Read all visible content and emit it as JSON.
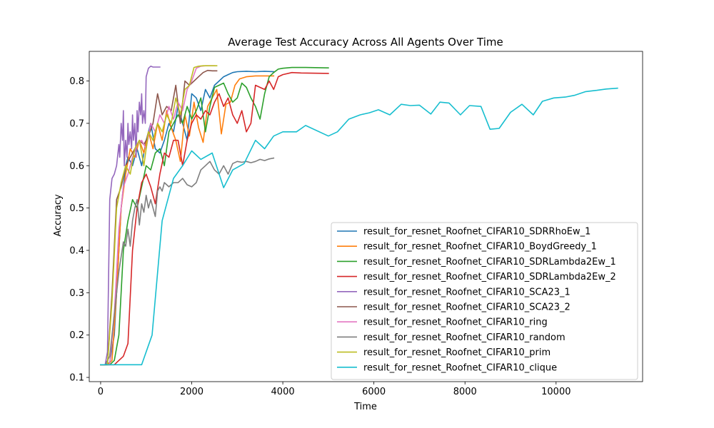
{
  "chart_data": {
    "type": "line",
    "title": "Average Test Accuracy Across All Agents Over Time",
    "xlabel": "Time",
    "ylabel": "Accuracy",
    "xlim": [
      -250,
      11900
    ],
    "ylim": [
      0.09,
      0.87
    ],
    "xticks": [
      0,
      2000,
      4000,
      6000,
      8000,
      10000
    ],
    "yticks": [
      0.1,
      0.2,
      0.3,
      0.4,
      0.5,
      0.6,
      0.7,
      0.8
    ],
    "grid": false,
    "legend_position": "lower-right",
    "series": [
      {
        "name": "result_for_resnet_Roofnet_CIFAR10_SDRRhoEw_1",
        "color": "#1f77b4",
        "x": [
          0,
          100,
          200,
          300,
          400,
          450,
          500,
          550,
          600,
          700,
          800,
          900,
          1000,
          1100,
          1200,
          1300,
          1400,
          1500,
          1600,
          1700,
          1800,
          1900,
          2000,
          2100,
          2200,
          2300,
          2400,
          2500,
          2600,
          2700,
          2800,
          2900,
          3000,
          3200,
          3400,
          3600,
          3800
        ],
        "y": [
          0.13,
          0.13,
          0.135,
          0.2,
          0.4,
          0.5,
          0.55,
          0.6,
          0.62,
          0.6,
          0.64,
          0.6,
          0.66,
          0.7,
          0.64,
          0.63,
          0.66,
          0.7,
          0.68,
          0.74,
          0.7,
          0.66,
          0.77,
          0.76,
          0.73,
          0.78,
          0.76,
          0.79,
          0.8,
          0.81,
          0.815,
          0.82,
          0.822,
          0.823,
          0.822,
          0.823,
          0.822
        ]
      },
      {
        "name": "result_for_resnet_Roofnet_CIFAR10_BoydGreedy_1",
        "color": "#ff7f0e",
        "x": [
          0,
          150,
          250,
          350,
          450,
          550,
          650,
          750,
          850,
          950,
          1050,
          1150,
          1250,
          1350,
          1450,
          1550,
          1650,
          1750,
          1850,
          1950,
          2050,
          2150,
          2250,
          2350,
          2450,
          2550,
          2650,
          2750,
          2850,
          2950,
          3050,
          3200,
          3400,
          3600,
          3800
        ],
        "y": [
          0.13,
          0.13,
          0.14,
          0.3,
          0.5,
          0.58,
          0.64,
          0.62,
          0.66,
          0.63,
          0.68,
          0.64,
          0.7,
          0.66,
          0.73,
          0.69,
          0.66,
          0.61,
          0.72,
          0.67,
          0.75,
          0.69,
          0.655,
          0.74,
          0.76,
          0.78,
          0.675,
          0.745,
          0.75,
          0.79,
          0.805,
          0.81,
          0.812,
          0.812,
          0.812
        ]
      },
      {
        "name": "result_for_resnet_Roofnet_CIFAR10_SDRLambda2Ew_1",
        "color": "#2ca02c",
        "x": [
          0,
          200,
          300,
          400,
          500,
          600,
          700,
          800,
          900,
          1000,
          1100,
          1200,
          1300,
          1400,
          1500,
          1600,
          1700,
          1800,
          1900,
          2000,
          2100,
          2200,
          2300,
          2400,
          2500,
          2600,
          2700,
          2800,
          2900,
          3000,
          3100,
          3200,
          3300,
          3400,
          3500,
          3600,
          3700,
          3800,
          3900,
          4000,
          4200,
          4500,
          5000
        ],
        "y": [
          0.13,
          0.13,
          0.14,
          0.2,
          0.4,
          0.47,
          0.52,
          0.5,
          0.55,
          0.6,
          0.59,
          0.63,
          0.64,
          0.6,
          0.68,
          0.7,
          0.72,
          0.7,
          0.74,
          0.71,
          0.73,
          0.76,
          0.68,
          0.74,
          0.785,
          0.79,
          0.795,
          0.77,
          0.75,
          0.76,
          0.795,
          0.785,
          0.76,
          0.74,
          0.71,
          0.77,
          0.81,
          0.82,
          0.828,
          0.83,
          0.832,
          0.832,
          0.831
        ]
      },
      {
        "name": "result_for_resnet_Roofnet_CIFAR10_SDRLambda2Ew_2",
        "color": "#d62728",
        "x": [
          0,
          300,
          500,
          600,
          700,
          800,
          900,
          1000,
          1100,
          1200,
          1300,
          1400,
          1500,
          1600,
          1700,
          1800,
          1900,
          2000,
          2100,
          2200,
          2300,
          2400,
          2500,
          2600,
          2700,
          2800,
          2900,
          3000,
          3100,
          3200,
          3300,
          3400,
          3500,
          3600,
          3700,
          3800,
          3900,
          4000,
          4200,
          4400,
          5000
        ],
        "y": [
          0.13,
          0.13,
          0.15,
          0.18,
          0.4,
          0.5,
          0.56,
          0.58,
          0.55,
          0.51,
          0.58,
          0.63,
          0.62,
          0.66,
          0.66,
          0.6,
          0.66,
          0.7,
          0.72,
          0.71,
          0.73,
          0.72,
          0.75,
          0.77,
          0.74,
          0.76,
          0.72,
          0.7,
          0.73,
          0.68,
          0.7,
          0.79,
          0.785,
          0.78,
          0.8,
          0.78,
          0.81,
          0.815,
          0.82,
          0.819,
          0.818
        ]
      },
      {
        "name": "result_for_resnet_Roofnet_CIFAR10_SCA23_1",
        "color": "#9467bd",
        "x": [
          0,
          100,
          150,
          200,
          250,
          300,
          350,
          400,
          420,
          450,
          480,
          500,
          520,
          550,
          580,
          600,
          620,
          650,
          680,
          700,
          720,
          750,
          780,
          800,
          820,
          850,
          880,
          900,
          920,
          950,
          980,
          1000,
          1050,
          1100,
          1150,
          1200,
          1300
        ],
        "y": [
          0.13,
          0.13,
          0.16,
          0.52,
          0.57,
          0.58,
          0.6,
          0.65,
          0.62,
          0.7,
          0.66,
          0.73,
          0.6,
          0.66,
          0.62,
          0.7,
          0.65,
          0.68,
          0.64,
          0.72,
          0.66,
          0.7,
          0.62,
          0.73,
          0.68,
          0.75,
          0.72,
          0.77,
          0.7,
          0.73,
          0.7,
          0.81,
          0.83,
          0.835,
          0.833,
          0.833,
          0.833
        ]
      },
      {
        "name": "result_for_resnet_Roofnet_CIFAR10_SCA23_2",
        "color": "#8c564b",
        "x": [
          0,
          150,
          250,
          350,
          450,
          550,
          650,
          750,
          850,
          950,
          1050,
          1150,
          1250,
          1350,
          1450,
          1550,
          1650,
          1750,
          1850,
          1950,
          2050,
          2150,
          2250,
          2350,
          2450,
          2550
        ],
        "y": [
          0.13,
          0.13,
          0.3,
          0.52,
          0.55,
          0.6,
          0.62,
          0.64,
          0.66,
          0.65,
          0.67,
          0.7,
          0.77,
          0.72,
          0.74,
          0.73,
          0.79,
          0.7,
          0.8,
          0.79,
          0.8,
          0.81,
          0.82,
          0.825,
          0.824,
          0.824
        ]
      },
      {
        "name": "result_for_resnet_Roofnet_CIFAR10_ring",
        "color": "#e377c2",
        "x": [
          0,
          200,
          300,
          400,
          500,
          600,
          700,
          800,
          900,
          1000,
          1100,
          1200,
          1300,
          1400,
          1500,
          1600,
          1700,
          1800,
          1900,
          2000,
          2100,
          2200,
          2300,
          2400,
          2500
        ],
        "y": [
          0.13,
          0.13,
          0.25,
          0.45,
          0.55,
          0.58,
          0.62,
          0.65,
          0.66,
          0.64,
          0.7,
          0.68,
          0.72,
          0.7,
          0.74,
          0.71,
          0.75,
          0.73,
          0.78,
          0.8,
          0.83,
          0.835,
          0.836,
          0.836,
          0.836
        ]
      },
      {
        "name": "result_for_resnet_Roofnet_CIFAR10_random",
        "color": "#7f7f7f",
        "x": [
          0,
          100,
          200,
          300,
          400,
          500,
          550,
          600,
          650,
          700,
          750,
          800,
          850,
          900,
          950,
          1000,
          1050,
          1100,
          1150,
          1200,
          1250,
          1300,
          1350,
          1400,
          1500,
          1600,
          1700,
          1800,
          1900,
          2000,
          2100,
          2200,
          2300,
          2400,
          2500,
          2600,
          2700,
          2800,
          2900,
          3000,
          3100,
          3200,
          3300,
          3400,
          3500,
          3600,
          3700,
          3800
        ],
        "y": [
          0.13,
          0.13,
          0.15,
          0.25,
          0.35,
          0.42,
          0.41,
          0.45,
          0.41,
          0.47,
          0.5,
          0.52,
          0.46,
          0.51,
          0.49,
          0.53,
          0.5,
          0.52,
          0.5,
          0.48,
          0.54,
          0.55,
          0.54,
          0.56,
          0.55,
          0.56,
          0.56,
          0.57,
          0.555,
          0.55,
          0.56,
          0.59,
          0.6,
          0.61,
          0.59,
          0.58,
          0.6,
          0.58,
          0.605,
          0.61,
          0.608,
          0.61,
          0.607,
          0.61,
          0.615,
          0.612,
          0.616,
          0.618
        ]
      },
      {
        "name": "result_for_resnet_Roofnet_CIFAR10_prim",
        "color": "#bcbd22",
        "x": [
          0,
          150,
          250,
          350,
          450,
          550,
          650,
          750,
          850,
          950,
          1050,
          1150,
          1250,
          1350,
          1450,
          1550,
          1650,
          1750,
          1850,
          1950,
          2050,
          2150,
          2250,
          2350,
          2450,
          2550
        ],
        "y": [
          0.13,
          0.13,
          0.28,
          0.5,
          0.56,
          0.6,
          0.58,
          0.64,
          0.66,
          0.6,
          0.68,
          0.66,
          0.7,
          0.68,
          0.72,
          0.7,
          0.76,
          0.72,
          0.78,
          0.79,
          0.832,
          0.835,
          0.836,
          0.836,
          0.836,
          0.836
        ]
      },
      {
        "name": "result_for_resnet_Roofnet_CIFAR10_clique",
        "color": "#17becf",
        "x": [
          0,
          900,
          1130,
          1350,
          1600,
          1800,
          2000,
          2200,
          2450,
          2700,
          2900,
          3150,
          3400,
          3600,
          3800,
          4000,
          4300,
          4500,
          5000,
          5200,
          5450,
          5700,
          5900,
          6100,
          6350,
          6600,
          6800,
          7000,
          7250,
          7450,
          7650,
          7900,
          8100,
          8350,
          8550,
          8750,
          9000,
          9250,
          9500,
          9700,
          9950,
          10200,
          10400,
          10650,
          10900,
          11100,
          11350
        ],
        "y": [
          0.13,
          0.13,
          0.2,
          0.47,
          0.57,
          0.6,
          0.635,
          0.615,
          0.63,
          0.548,
          0.59,
          0.605,
          0.66,
          0.64,
          0.67,
          0.68,
          0.68,
          0.695,
          0.67,
          0.68,
          0.71,
          0.72,
          0.725,
          0.732,
          0.72,
          0.745,
          0.742,
          0.743,
          0.722,
          0.75,
          0.748,
          0.72,
          0.742,
          0.74,
          0.686,
          0.688,
          0.726,
          0.745,
          0.72,
          0.752,
          0.76,
          0.762,
          0.766,
          0.775,
          0.778,
          0.781,
          0.783
        ]
      }
    ]
  }
}
